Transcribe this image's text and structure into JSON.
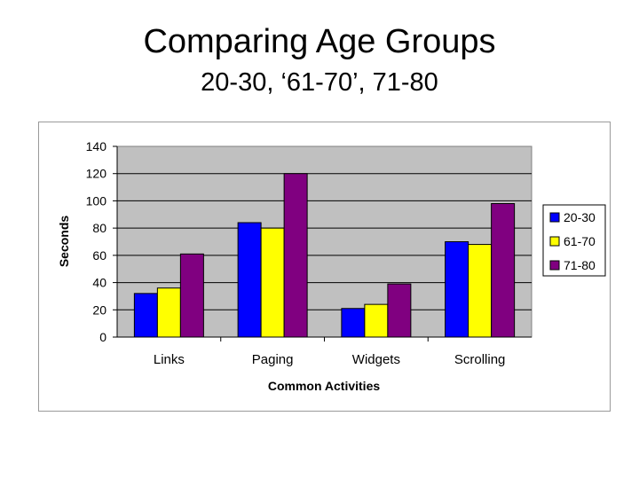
{
  "slide": {
    "title": "Comparing Age Groups",
    "subtitle": "20-30, ‘61-70’, 71-80"
  },
  "chart_data": {
    "type": "bar",
    "categories": [
      "Links",
      "Paging",
      "Widgets",
      "Scrolling"
    ],
    "series": [
      {
        "name": "20-30",
        "values": [
          32,
          84,
          21,
          70
        ],
        "color": "#0000FF"
      },
      {
        "name": "61-70",
        "values": [
          36,
          80,
          24,
          68
        ],
        "color": "#FFFF00"
      },
      {
        "name": "71-80",
        "values": [
          61,
          120,
          39,
          98
        ],
        "color": "#800080"
      }
    ],
    "xlabel": "Common Activities",
    "ylabel": "Seconds",
    "ylim": [
      0,
      140
    ],
    "yticks": [
      0,
      20,
      40,
      60,
      80,
      100,
      120,
      140
    ],
    "grid": true,
    "plot_background": "#C0C0C0",
    "legend_position": "right"
  }
}
